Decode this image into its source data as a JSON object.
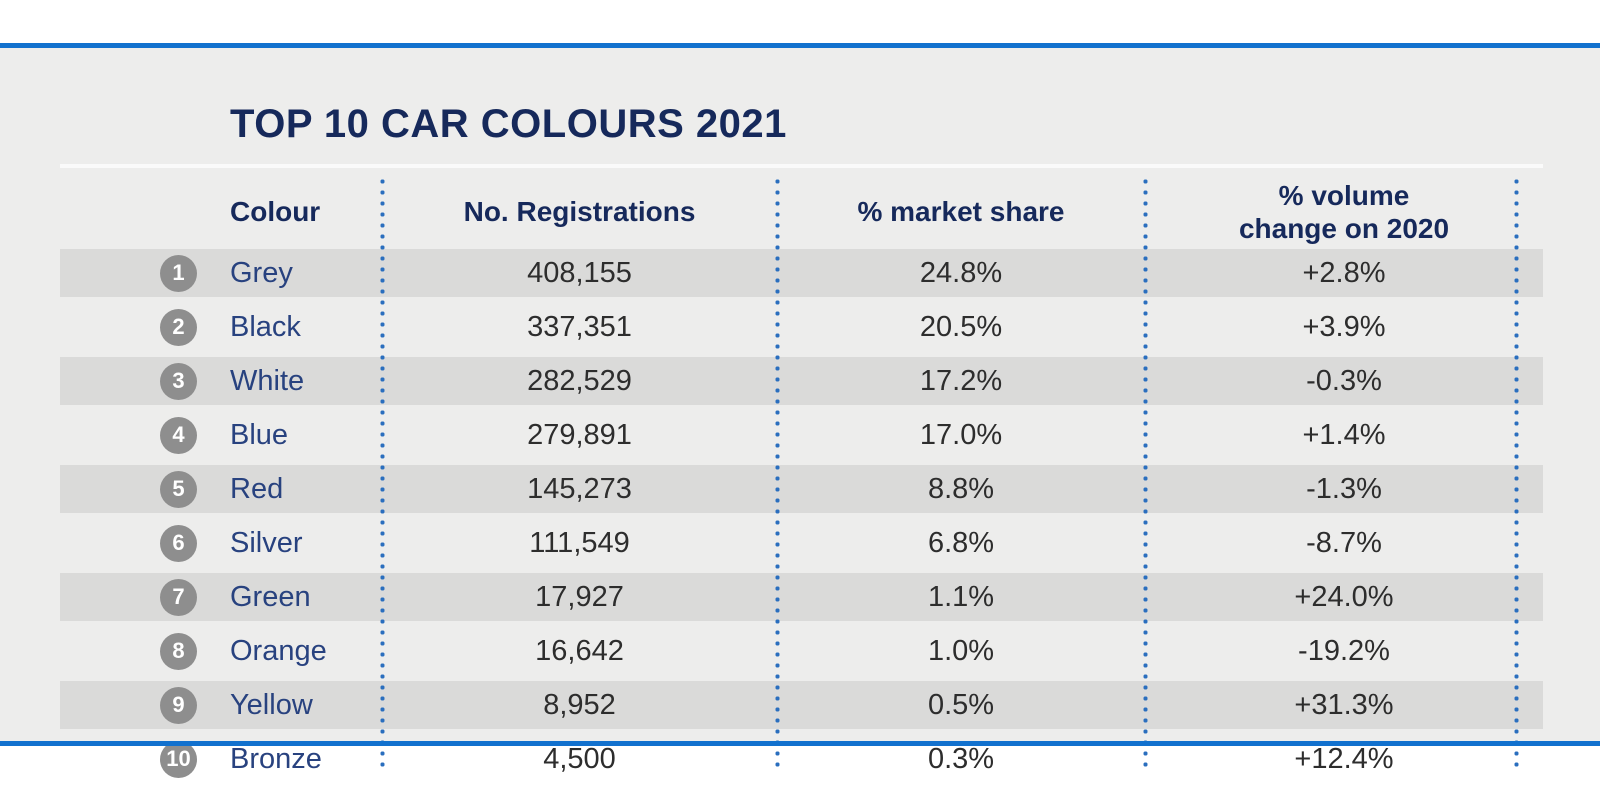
{
  "title": "TOP 10 CAR COLOURS 2021",
  "table": {
    "headers": {
      "colour": "Colour",
      "registrations": "No. Registrations",
      "market_share": "% market share",
      "volume_change": "% volume\nchange on 2020"
    },
    "rows": [
      {
        "rank": "1",
        "colour": "Grey",
        "registrations": "408,155",
        "market_share": "24.8%",
        "volume_change": "+2.8%"
      },
      {
        "rank": "2",
        "colour": "Black",
        "registrations": "337,351",
        "market_share": "20.5%",
        "volume_change": "+3.9%"
      },
      {
        "rank": "3",
        "colour": "White",
        "registrations": "282,529",
        "market_share": "17.2%",
        "volume_change": "-0.3%"
      },
      {
        "rank": "4",
        "colour": "Blue",
        "registrations": "279,891",
        "market_share": "17.0%",
        "volume_change": "+1.4%"
      },
      {
        "rank": "5",
        "colour": "Red",
        "registrations": "145,273",
        "market_share": "8.8%",
        "volume_change": "-1.3%"
      },
      {
        "rank": "6",
        "colour": "Silver",
        "registrations": "111,549",
        "market_share": "6.8%",
        "volume_change": "-8.7%"
      },
      {
        "rank": "7",
        "colour": "Green",
        "registrations": "17,927",
        "market_share": "1.1%",
        "volume_change": "+24.0%"
      },
      {
        "rank": "8",
        "colour": "Orange",
        "registrations": "16,642",
        "market_share": "1.0%",
        "volume_change": "-19.2%"
      },
      {
        "rank": "9",
        "colour": "Yellow",
        "registrations": "8,952",
        "market_share": "0.5%",
        "volume_change": "+31.3%"
      },
      {
        "rank": "10",
        "colour": "Bronze",
        "registrations": "4,500",
        "market_share": "0.3%",
        "volume_change": "+12.4%"
      }
    ]
  },
  "colors": {
    "accent_blue_line": "#1271CE",
    "heading_navy": "#16295B",
    "colour_name_blue": "#28427F",
    "stripe_grey": "#DADAD9",
    "panel_background": "#EDEDEC",
    "rank_badge_grey": "#8E8E8E",
    "divider_dot_blue": "#2A6EBE",
    "value_text": "#2D2D2D"
  },
  "chart_data": {
    "type": "table",
    "title": "TOP 10 CAR COLOURS 2021",
    "columns": [
      "Rank",
      "Colour",
      "No. Registrations",
      "% market share",
      "% volume change on 2020"
    ],
    "rows": [
      [
        1,
        "Grey",
        408155,
        24.8,
        2.8
      ],
      [
        2,
        "Black",
        337351,
        20.5,
        3.9
      ],
      [
        3,
        "White",
        282529,
        17.2,
        -0.3
      ],
      [
        4,
        "Blue",
        279891,
        17.0,
        1.4
      ],
      [
        5,
        "Red",
        145273,
        8.8,
        -1.3
      ],
      [
        6,
        "Silver",
        111549,
        6.8,
        -8.7
      ],
      [
        7,
        "Green",
        17927,
        1.1,
        24.0
      ],
      [
        8,
        "Orange",
        16642,
        1.0,
        -19.2
      ],
      [
        9,
        "Yellow",
        8952,
        0.5,
        31.3
      ],
      [
        10,
        "Bronze",
        4500,
        0.3,
        12.4
      ]
    ],
    "layout": {
      "row_striping": true,
      "column_dividers": "dotted-blue",
      "notes": "infographic table, no axes"
    }
  }
}
